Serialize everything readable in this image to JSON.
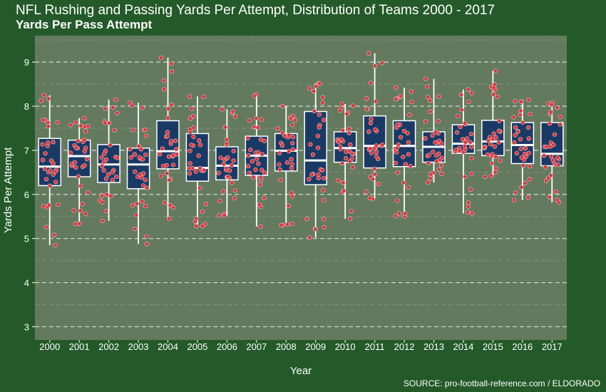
{
  "chart_data": {
    "type": "box",
    "title": "NFL Rushing and Passing Yards Per Attempt, Distribution of Teams 2000 - 2017",
    "subtitle": "Yards Per Pass Attempt",
    "xlabel": "Year",
    "ylabel": "Yards Per Attempt",
    "ylim": [
      2.7,
      9.6
    ],
    "yticks": [
      3,
      4,
      5,
      6,
      7,
      8,
      9
    ],
    "grid": true,
    "source": "SOURCE: pro-football-reference.com / ELDORADO",
    "colors": {
      "background": "#245a2a",
      "panel": "#637a5f",
      "box_fill": "#1a3a66",
      "box_line": "#ffffff",
      "points": "#d9363e"
    },
    "categories": [
      "2000",
      "2001",
      "2002",
      "2003",
      "2004",
      "2005",
      "2006",
      "2007",
      "2008",
      "2009",
      "2010",
      "2011",
      "2012",
      "2013",
      "2014",
      "2015",
      "2016",
      "2017"
    ],
    "boxes": [
      {
        "year": "2000",
        "min": 4.85,
        "q1": 6.2,
        "median": 6.63,
        "q3": 7.27,
        "max": 8.25
      },
      {
        "year": "2001",
        "min": 5.33,
        "q1": 6.4,
        "median": 6.87,
        "q3": 7.23,
        "max": 7.73
      },
      {
        "year": "2002",
        "min": 5.4,
        "q1": 6.27,
        "median": 6.68,
        "q3": 7.13,
        "max": 8.15
      },
      {
        "year": "2003",
        "min": 4.88,
        "q1": 6.13,
        "median": 6.68,
        "q3": 7.05,
        "max": 8.08
      },
      {
        "year": "2004",
        "min": 5.45,
        "q1": 6.58,
        "median": 6.98,
        "q3": 7.67,
        "max": 9.1
      },
      {
        "year": "2005",
        "min": 5.28,
        "q1": 6.3,
        "median": 6.6,
        "q3": 7.38,
        "max": 8.22
      },
      {
        "year": "2006",
        "min": 5.52,
        "q1": 6.33,
        "median": 6.65,
        "q3": 7.08,
        "max": 7.93
      },
      {
        "year": "2007",
        "min": 5.27,
        "q1": 6.43,
        "median": 6.88,
        "q3": 7.32,
        "max": 8.27
      },
      {
        "year": "2008",
        "min": 5.3,
        "q1": 6.53,
        "median": 6.99,
        "q3": 7.38,
        "max": 8.0
      },
      {
        "year": "2009",
        "min": 5.02,
        "q1": 6.22,
        "median": 6.77,
        "q3": 7.88,
        "max": 8.52
      },
      {
        "year": "2010",
        "min": 5.45,
        "q1": 6.73,
        "median": 7.05,
        "q3": 7.42,
        "max": 8.05
      },
      {
        "year": "2011",
        "min": 5.9,
        "q1": 6.6,
        "median": 7.1,
        "q3": 7.78,
        "max": 9.2
      },
      {
        "year": "2012",
        "min": 5.5,
        "q1": 6.63,
        "median": 7.1,
        "q3": 7.67,
        "max": 8.42
      },
      {
        "year": "2013",
        "min": 6.27,
        "q1": 6.73,
        "median": 7.08,
        "q3": 7.42,
        "max": 8.62
      },
      {
        "year": "2014",
        "min": 5.57,
        "q1": 6.93,
        "median": 7.15,
        "q3": 7.58,
        "max": 8.38
      },
      {
        "year": "2015",
        "min": 6.4,
        "q1": 6.88,
        "median": 7.2,
        "q3": 7.68,
        "max": 8.8
      },
      {
        "year": "2016",
        "min": 5.87,
        "q1": 6.7,
        "median": 7.12,
        "q3": 7.63,
        "max": 8.15
      },
      {
        "year": "2017",
        "min": 5.82,
        "q1": 6.65,
        "median": 6.92,
        "q3": 7.63,
        "max": 8.08
      }
    ]
  }
}
